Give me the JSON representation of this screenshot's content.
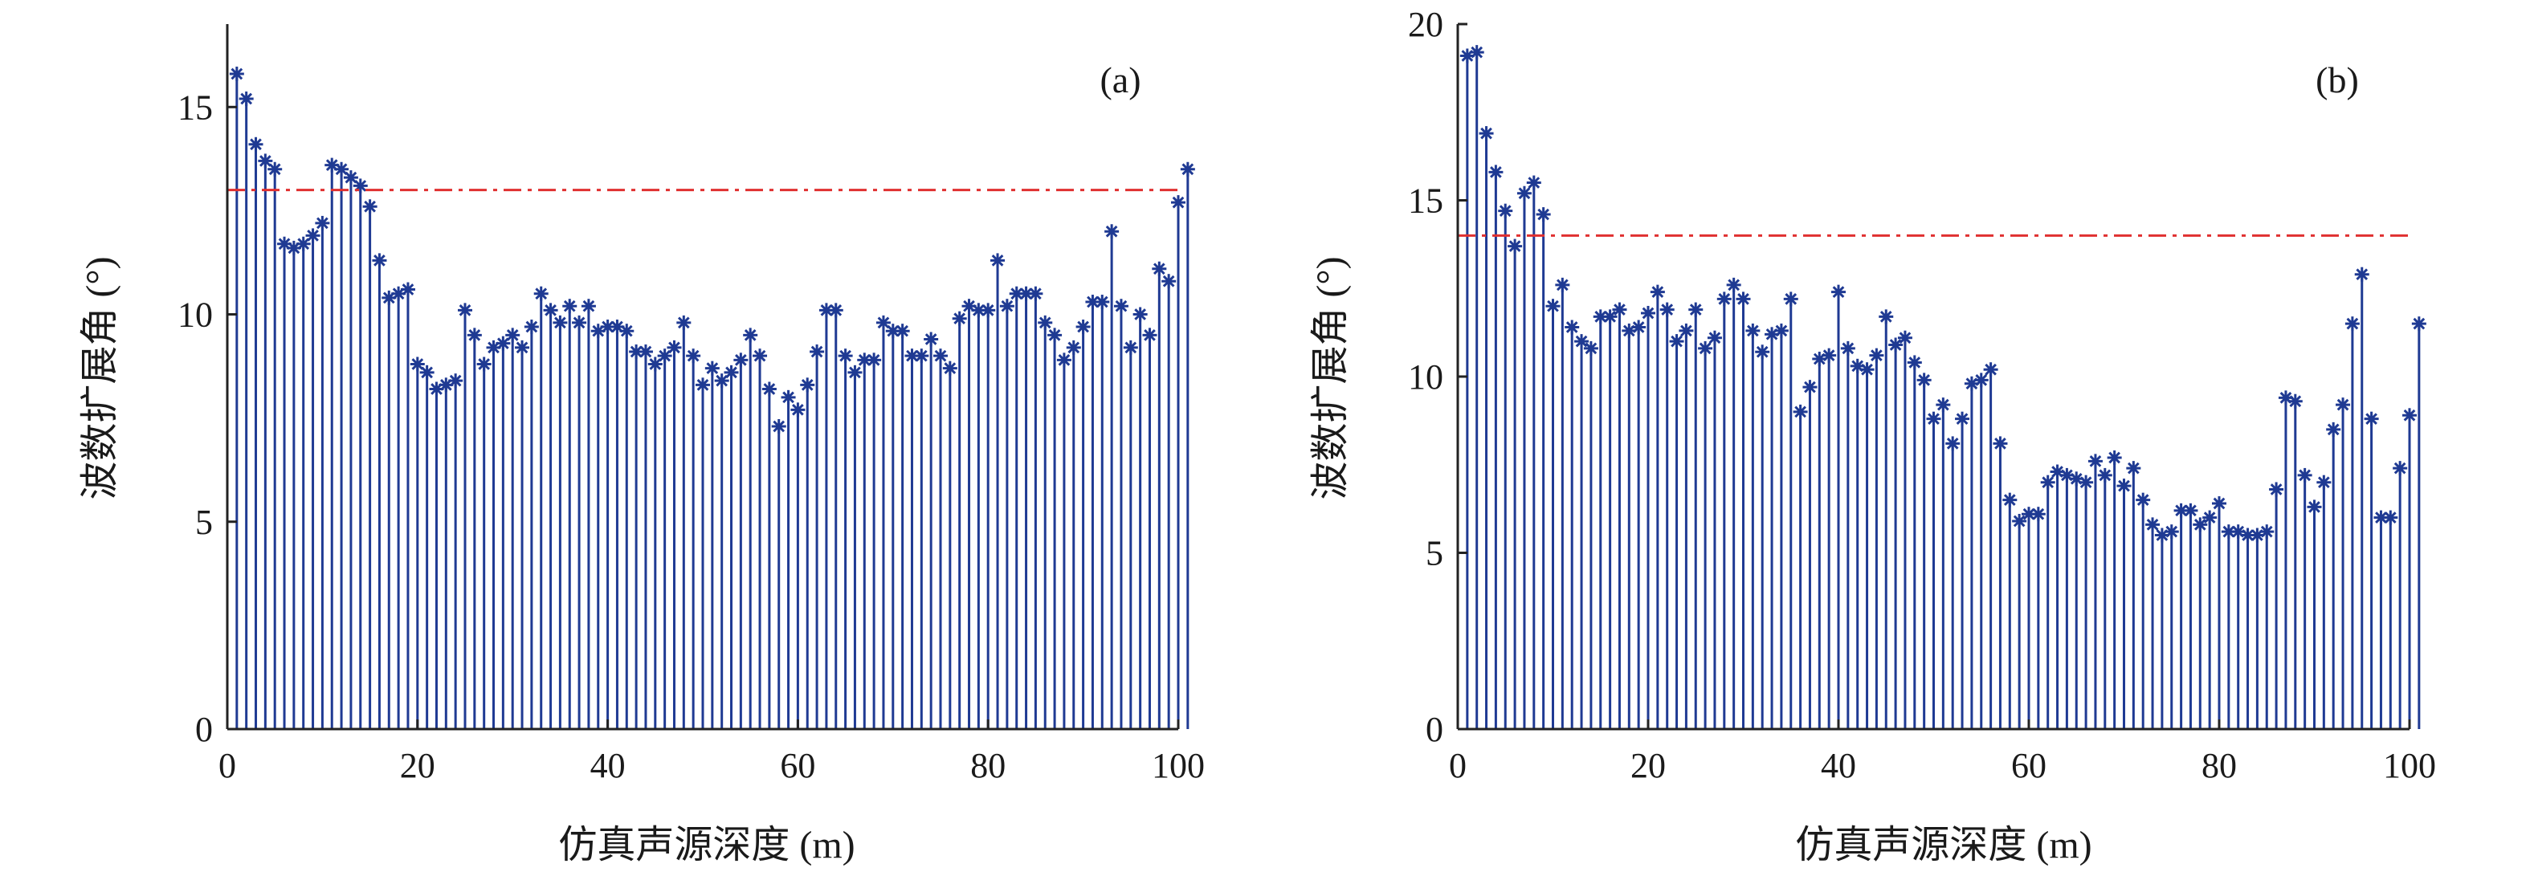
{
  "chart_data": [
    {
      "type": "stem",
      "panel_label": "(a)",
      "xlabel": "仿真声源深度 (m)",
      "ylabel": "波数扩展角 (°)",
      "xlim": [
        0,
        100
      ],
      "ylim": [
        0,
        17
      ],
      "xticks": [
        "0",
        "20",
        "40",
        "60",
        "80",
        "100"
      ],
      "yticks": [
        "0",
        "5",
        "10",
        "15"
      ],
      "threshold": 13,
      "marker": "asterisk",
      "stem_color": "#1f3a93",
      "threshold_color": "#e03030",
      "x_start": 1,
      "values": [
        15.8,
        15.2,
        14.1,
        13.7,
        13.5,
        11.7,
        11.6,
        11.7,
        11.9,
        12.2,
        13.6,
        13.5,
        13.3,
        13.1,
        12.6,
        11.3,
        10.4,
        10.5,
        10.6,
        8.8,
        8.6,
        8.2,
        8.3,
        8.4,
        10.1,
        9.5,
        8.8,
        9.2,
        9.3,
        9.5,
        9.2,
        9.7,
        10.5,
        10.1,
        9.8,
        10.2,
        9.8,
        10.2,
        9.6,
        9.7,
        9.7,
        9.6,
        9.1,
        9.1,
        8.8,
        9.0,
        9.2,
        9.8,
        9.0,
        8.3,
        8.7,
        8.4,
        8.6,
        8.9,
        9.5,
        9.0,
        8.2,
        7.3,
        8.0,
        7.7,
        8.3,
        9.1,
        10.1,
        10.1,
        9.0,
        8.6,
        8.9,
        8.9,
        9.8,
        9.6,
        9.6,
        9.0,
        9.0,
        9.4,
        9.0,
        8.7,
        9.9,
        10.2,
        10.1,
        10.1,
        11.3,
        10.2,
        10.5,
        10.5,
        10.5,
        9.8,
        9.5,
        8.9,
        9.2,
        9.7,
        10.3,
        10.3,
        12.0,
        10.2,
        9.2,
        10.0,
        9.5,
        11.1,
        10.8,
        12.7,
        13.5
      ]
    },
    {
      "type": "stem",
      "panel_label": "(b)",
      "xlabel": "仿真声源深度 (m)",
      "ylabel": "波数扩展角 (°)",
      "xlim": [
        0,
        100
      ],
      "ylim": [
        0,
        20
      ],
      "xticks": [
        "0",
        "20",
        "40",
        "60",
        "80",
        "100"
      ],
      "yticks": [
        "0",
        "5",
        "10",
        "15",
        "20"
      ],
      "threshold": 14,
      "marker": "asterisk",
      "stem_color": "#1f3a93",
      "threshold_color": "#e03030",
      "x_start": 1,
      "values": [
        19.1,
        19.2,
        16.9,
        15.8,
        14.7,
        13.7,
        15.2,
        15.5,
        14.6,
        12.0,
        12.6,
        11.4,
        11.0,
        10.8,
        11.7,
        11.7,
        11.9,
        11.3,
        11.4,
        11.8,
        12.4,
        11.9,
        11.0,
        11.3,
        11.9,
        10.8,
        11.1,
        12.2,
        12.6,
        12.2,
        11.3,
        10.7,
        11.2,
        11.3,
        12.2,
        9.0,
        9.7,
        10.5,
        10.6,
        12.4,
        10.8,
        10.3,
        10.2,
        10.6,
        11.7,
        10.9,
        11.1,
        10.4,
        9.9,
        8.8,
        9.2,
        8.1,
        8.8,
        9.8,
        9.9,
        10.2,
        8.1,
        6.5,
        5.9,
        6.1,
        6.1,
        7.0,
        7.3,
        7.2,
        7.1,
        7.0,
        7.6,
        7.2,
        7.7,
        6.9,
        7.4,
        6.5,
        5.8,
        5.5,
        5.6,
        6.2,
        6.2,
        5.8,
        6.0,
        6.4,
        5.6,
        5.6,
        5.5,
        5.5,
        5.6,
        6.8,
        9.4,
        9.3,
        7.2,
        6.3,
        7.0,
        8.5,
        9.2,
        11.5,
        12.9,
        8.8,
        6.0,
        6.0,
        7.4,
        8.9,
        11.5
      ]
    }
  ]
}
